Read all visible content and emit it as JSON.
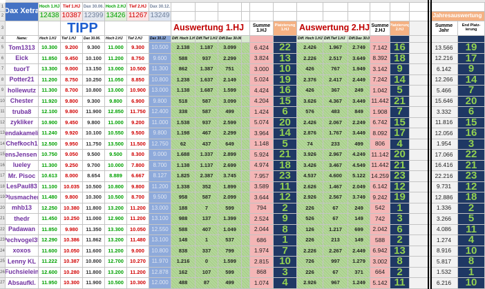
{
  "header": {
    "title": "Dax Xetra",
    "actual_labels": [
      "Hoch 1.HJ",
      "Tief 1.HJ",
      "Dax 30.06.",
      "Hoch 2.HJ",
      "Tief 2.HJ",
      "Dax 30.12."
    ],
    "actual_values": [
      "12438",
      "10387",
      "12399",
      "13426",
      "11267",
      "13249"
    ],
    "tipp": "TIPP",
    "eval1": "Auswertung 1.HJ",
    "sum1": "Summe 1.HJ",
    "rank1": "Platzierung 1.HJ",
    "eval2": "Auswertung 2.HJ",
    "sum2": "Summe 2.HJ",
    "rank2": "Platzierung 2.HJ",
    "year": "Jahresauswertung",
    "sum_year": "Summe Jahr",
    "final_rank": "End Platz-ierung"
  },
  "table": {
    "columns": [
      "Name:",
      "Hoch 1.HJ",
      "Tief 1.HJ",
      "Dax 30.06.",
      "Hoch 2.HJ",
      "Tief 2.HJ",
      "Dax 30.12",
      "Diff. Hoch 1.HJ",
      "Diff.Tief 1.HJ",
      "Diff.Dax 30.06.",
      "Diff. Hoch 1.HJ",
      "Diff.Tief 1.HJ",
      "Diff.Dax 30.06."
    ],
    "row_numbers": [
      "1",
      "2",
      "3",
      "4",
      "5",
      "6",
      "7",
      "8",
      "9",
      "10",
      "11",
      "12",
      "13",
      "14",
      "15",
      "16",
      "17",
      "18",
      "19",
      "20",
      "21",
      "22",
      "23",
      "24",
      "25",
      "26",
      "27"
    ],
    "rows": [
      [
        "Tom1313",
        "10.300",
        "9.200",
        "9.300",
        "11.000",
        "9.300",
        "10.500",
        "2.138",
        "1.187",
        "3.099",
        "6.424",
        "22",
        "2.426",
        "1.967",
        "2.749",
        "7.142",
        "16",
        "13.566",
        "19"
      ],
      [
        "Eick",
        "11.850",
        "9.450",
        "10.100",
        "11.200",
        "8.750",
        "9.600",
        "588",
        "937",
        "2.299",
        "3.824",
        "13",
        "2.226",
        "2.517",
        "3.649",
        "8.392",
        "18",
        "12.216",
        "17"
      ],
      [
        "tuorT",
        "13.300",
        "9.000",
        "13.150",
        "13.000",
        "10.500",
        "11.300",
        "862",
        "1.387",
        "751",
        "3.000",
        "10",
        "426",
        "767",
        "1.949",
        "3.142",
        "9",
        "6.142",
        "9"
      ],
      [
        "Potter21",
        "11.200",
        "8.750",
        "10.250",
        "11.050",
        "8.850",
        "10.800",
        "1.238",
        "1.637",
        "2.149",
        "5.024",
        "19",
        "2.376",
        "2.417",
        "2.449",
        "7.242",
        "14",
        "12.266",
        "14"
      ],
      [
        "hollewutz",
        "11.300",
        "8.700",
        "10.800",
        "13.000",
        "10.900",
        "13.000",
        "1.138",
        "1.687",
        "1.599",
        "4.424",
        "16",
        "426",
        "367",
        "249",
        "1.042",
        "5",
        "5.466",
        "7"
      ],
      [
        "Chester",
        "11.920",
        "9.800",
        "9.300",
        "9.800",
        "6.900",
        "9.800",
        "518",
        "587",
        "3.099",
        "4.204",
        "15",
        "3.626",
        "4.367",
        "3.449",
        "11.442",
        "21",
        "15.646",
        "20"
      ],
      [
        "truba8",
        "12.100",
        "9.800",
        "11.900",
        "12.850",
        "11.750",
        "12.400",
        "338",
        "587",
        "499",
        "1.424",
        "6",
        "576",
        "483",
        "849",
        "1.908",
        "7",
        "3.332",
        "6"
      ],
      [
        "zykliker",
        "10.900",
        "9.450",
        "9.800",
        "11.000",
        "9.200",
        "11.000",
        "1.538",
        "937",
        "2.599",
        "5.074",
        "20",
        "2.426",
        "2.067",
        "2.249",
        "6.742",
        "15",
        "11.816",
        "15"
      ],
      [
        "endakameli",
        "11.240",
        "9.920",
        "10.100",
        "10.550",
        "9.500",
        "9.800",
        "1.198",
        "467",
        "2.299",
        "3.964",
        "14",
        "2.876",
        "1.767",
        "3.449",
        "8.092",
        "17",
        "12.056",
        "16"
      ],
      [
        "Chefkoch1",
        "12.500",
        "9.950",
        "11.750",
        "13.500",
        "11.500",
        "12.750",
        "62",
        "437",
        "649",
        "1.148",
        "5",
        "74",
        "233",
        "499",
        "806",
        "4",
        "1.954",
        "3"
      ],
      [
        "JensJensen 3",
        "10.750",
        "9.050",
        "9.500",
        "9.500",
        "8.300",
        "9.000",
        "1.688",
        "1.337",
        "2.899",
        "5.924",
        "21",
        "3.926",
        "2.967",
        "4.249",
        "11.142",
        "20",
        "17.066",
        "22"
      ],
      [
        "lueley",
        "11.300",
        "9.250",
        "9.700",
        "10.000",
        "7.800",
        "8.700",
        "1.138",
        "1.137",
        "2.699",
        "4.974",
        "18",
        "3.426",
        "3.467",
        "4.549",
        "11.442",
        "21",
        "16.416",
        "21"
      ],
      [
        "Mr. Pisoc",
        "10.613",
        "8.000",
        "8.654",
        "8.889",
        "6.667",
        "8.127",
        "1.825",
        "2.387",
        "3.745",
        "7.957",
        "23",
        "4.537",
        "4.600",
        "5.122",
        "14.259",
        "23",
        "22.216",
        "23"
      ],
      [
        "LesPaul83",
        "11.100",
        "10.035",
        "10.500",
        "10.800",
        "9.800",
        "11.200",
        "1.338",
        "352",
        "1.899",
        "3.589",
        "11",
        "2.626",
        "1.467",
        "2.049",
        "6.142",
        "12",
        "9.731",
        "12"
      ],
      [
        "Plusmacher",
        "11.480",
        "9.800",
        "10.300",
        "10.500",
        "8.700",
        "9.500",
        "958",
        "587",
        "2.099",
        "3.644",
        "12",
        "2.926",
        "2.567",
        "3.749",
        "9.242",
        "19",
        "12.886",
        "18"
      ],
      [
        "mhb13",
        "12.250",
        "10.380",
        "11.800",
        "13.200",
        "11.200",
        "13.000",
        "188",
        "7",
        "599",
        "794",
        "2",
        "226",
        "67",
        "249",
        "542",
        "1",
        "1.336",
        "2"
      ],
      [
        "thedr",
        "11.450",
        "10.250",
        "11.000",
        "12.900",
        "11.200",
        "13.100",
        "988",
        "137",
        "1.399",
        "2.524",
        "9",
        "526",
        "67",
        "149",
        "742",
        "3",
        "3.266",
        "5"
      ],
      [
        "Padawan",
        "11.850",
        "9.980",
        "11.350",
        "13.300",
        "10.050",
        "12.550",
        "588",
        "407",
        "1.049",
        "2.044",
        "8",
        "126",
        "1.217",
        "699",
        "2.042",
        "6",
        "4.086",
        "11"
      ],
      [
        "Pechvogel35",
        "12.290",
        "10.386",
        "11.862",
        "13.200",
        "11.480",
        "13.100",
        "148",
        "1",
        "537",
        "686",
        "1",
        "226",
        "213",
        "149",
        "588",
        "2",
        "1.274",
        "4"
      ],
      [
        "xoxos",
        "11.600",
        "10.050",
        "11.600",
        "11.200",
        "9.000",
        "10.800",
        "838",
        "337",
        "799",
        "1.974",
        "7",
        "2.226",
        "2.267",
        "2.449",
        "6.942",
        "13",
        "8.916",
        "10"
      ],
      [
        "Lenny KL",
        "11.222",
        "10.387",
        "10.800",
        "12.700",
        "10.270",
        "11.970",
        "1.216",
        "0",
        "1.599",
        "2.815",
        "10",
        "726",
        "997",
        "1.279",
        "3.002",
        "8",
        "5.817",
        "8"
      ],
      [
        "Fuchsielein",
        "12.600",
        "10.280",
        "11.800",
        "13.200",
        "11.200",
        "12.878",
        "162",
        "107",
        "599",
        "868",
        "3",
        "226",
        "67",
        "371",
        "664",
        "2",
        "1.532",
        "1"
      ],
      [
        "Absaufkl.",
        "11.950",
        "10.300",
        "11.900",
        "10.500",
        "10.300",
        "12.000",
        "488",
        "87",
        "499",
        "1.074",
        "4",
        "2.926",
        "967",
        "1.249",
        "5.142",
        "11",
        "6.216",
        "10"
      ]
    ]
  }
}
